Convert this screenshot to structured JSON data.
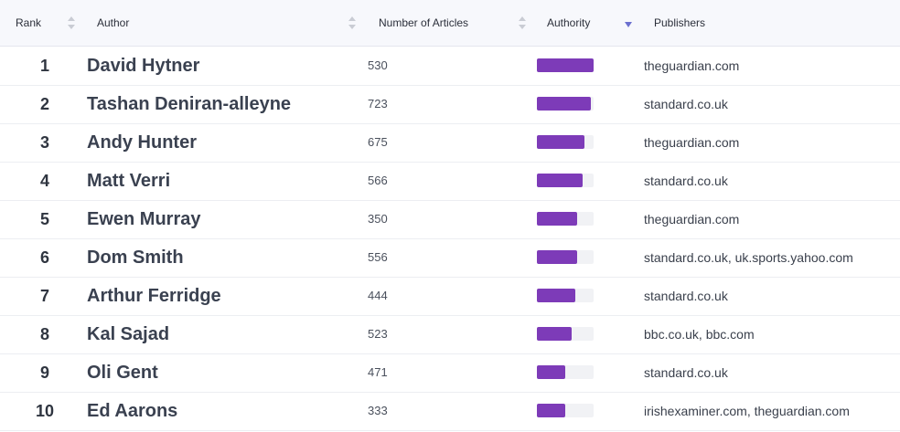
{
  "columns": {
    "rank": "Rank",
    "author": "Author",
    "articles": "Number of Articles",
    "authority": "Authority",
    "publishers": "Publishers"
  },
  "sort": {
    "active_column": "authority",
    "direction": "descending",
    "inactive_icon": "sort-both-icon",
    "active_icon": "sort-descending-icon"
  },
  "colors": {
    "bar_fill": "#7d3bb8",
    "bar_track": "#f1f2f5",
    "active_sort": "#6b6fcf"
  },
  "rows": [
    {
      "rank": "1",
      "author": "David Hytner",
      "articles": "530",
      "authority": 1.0,
      "publishers": "theguardian.com"
    },
    {
      "rank": "2",
      "author": "Tashan Deniran-alleyne",
      "articles": "723",
      "authority": 0.95,
      "publishers": "standard.co.uk"
    },
    {
      "rank": "3",
      "author": "Andy Hunter",
      "articles": "675",
      "authority": 0.84,
      "publishers": "theguardian.com"
    },
    {
      "rank": "4",
      "author": "Matt Verri",
      "articles": "566",
      "authority": 0.81,
      "publishers": "standard.co.uk"
    },
    {
      "rank": "5",
      "author": "Ewen Murray",
      "articles": "350",
      "authority": 0.71,
      "publishers": "theguardian.com"
    },
    {
      "rank": "6",
      "author": "Dom Smith",
      "articles": "556",
      "authority": 0.71,
      "publishers": "standard.co.uk, uk.sports.yahoo.com"
    },
    {
      "rank": "7",
      "author": "Arthur Ferridge",
      "articles": "444",
      "authority": 0.68,
      "publishers": "standard.co.uk"
    },
    {
      "rank": "8",
      "author": "Kal Sajad",
      "articles": "523",
      "authority": 0.61,
      "publishers": "bbc.co.uk, bbc.com"
    },
    {
      "rank": "9",
      "author": "Oli Gent",
      "articles": "471",
      "authority": 0.5,
      "publishers": "standard.co.uk"
    },
    {
      "rank": "10",
      "author": "Ed Aarons",
      "articles": "333",
      "authority": 0.5,
      "publishers": "irishexaminer.com, theguardian.com"
    }
  ]
}
